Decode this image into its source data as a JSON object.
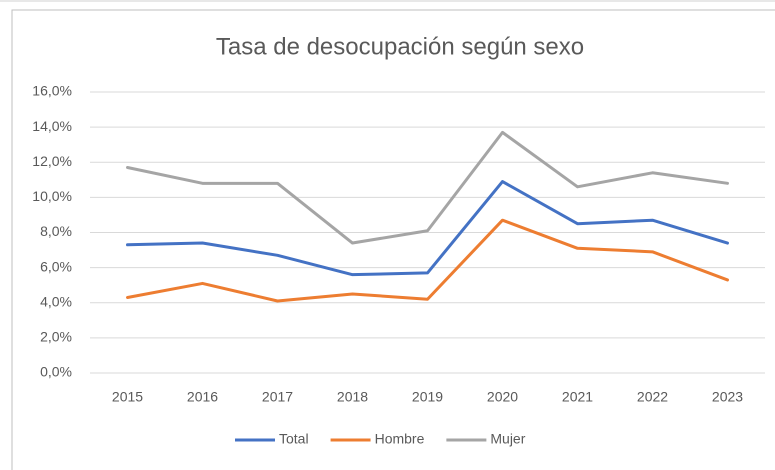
{
  "chart_data": {
    "type": "line",
    "title": "Tasa de desocupación según sexo",
    "categories": [
      "2015",
      "2016",
      "2017",
      "2018",
      "2019",
      "2020",
      "2021",
      "2022",
      "2023"
    ],
    "series": [
      {
        "name": "Total",
        "color": "#4472c4",
        "values": [
          7.3,
          7.4,
          6.7,
          5.6,
          5.7,
          10.9,
          8.5,
          8.7,
          7.4
        ]
      },
      {
        "name": "Hombre",
        "color": "#ed7d31",
        "values": [
          4.3,
          5.1,
          4.1,
          4.5,
          4.2,
          8.7,
          7.1,
          6.9,
          5.3
        ]
      },
      {
        "name": "Mujer",
        "color": "#a5a5a5",
        "values": [
          11.7,
          10.8,
          10.8,
          7.4,
          8.1,
          13.7,
          10.6,
          11.4,
          10.8
        ]
      }
    ],
    "ylim": [
      0,
      16
    ],
    "yticks": [
      {
        "value": 0,
        "label": "0,0%"
      },
      {
        "value": 2,
        "label": "2,0%"
      },
      {
        "value": 4,
        "label": "4,0%"
      },
      {
        "value": 6,
        "label": "6,0%"
      },
      {
        "value": 8,
        "label": "8,0%"
      },
      {
        "value": 10,
        "label": "10,0%"
      },
      {
        "value": 12,
        "label": "12,0%"
      },
      {
        "value": 14,
        "label": "14,0%"
      },
      {
        "value": 16,
        "label": "16,0%"
      }
    ],
    "grid": true,
    "legend": "bottom"
  }
}
